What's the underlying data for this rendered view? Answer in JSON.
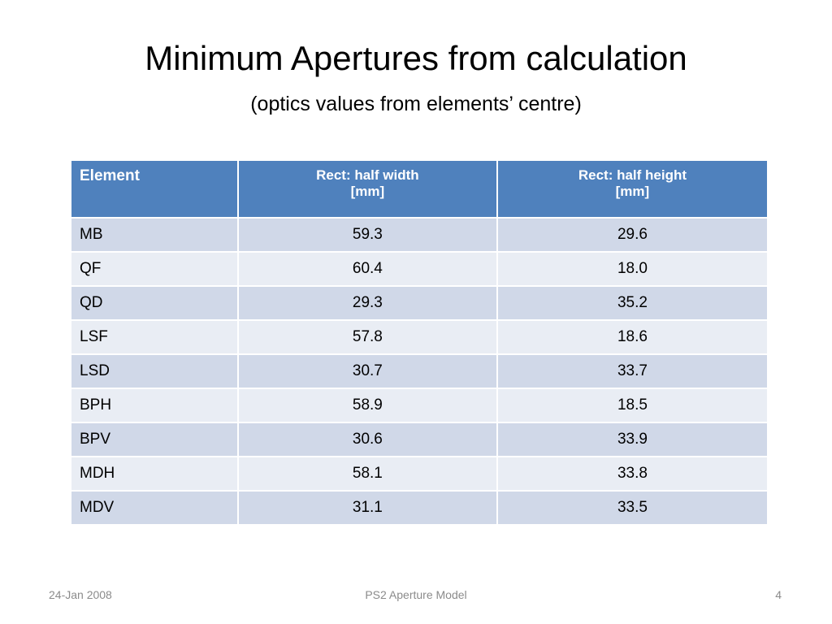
{
  "header": {
    "title": "Minimum Apertures from calculation",
    "subtitle": "(optics values from elements’ centre)"
  },
  "table": {
    "headers": [
      [
        "Element"
      ],
      [
        "Rect: half width",
        "[mm]"
      ],
      [
        "Rect: half height",
        "[mm]"
      ]
    ],
    "rows": [
      [
        "MB",
        "59.3",
        "29.6"
      ],
      [
        "QF",
        "60.4",
        "18.0"
      ],
      [
        "QD",
        "29.3",
        "35.2"
      ],
      [
        "LSF",
        "57.8",
        "18.6"
      ],
      [
        "LSD",
        "30.7",
        "33.7"
      ],
      [
        "BPH",
        "58.9",
        "18.5"
      ],
      [
        "BPV",
        "30.6",
        "33.9"
      ],
      [
        "MDH",
        "58.1",
        "33.8"
      ],
      [
        "MDV",
        "31.1",
        "33.5"
      ]
    ]
  },
  "footer": {
    "date": "24-Jan 2008",
    "center": "PS2 Aperture Model",
    "page": "4"
  }
}
